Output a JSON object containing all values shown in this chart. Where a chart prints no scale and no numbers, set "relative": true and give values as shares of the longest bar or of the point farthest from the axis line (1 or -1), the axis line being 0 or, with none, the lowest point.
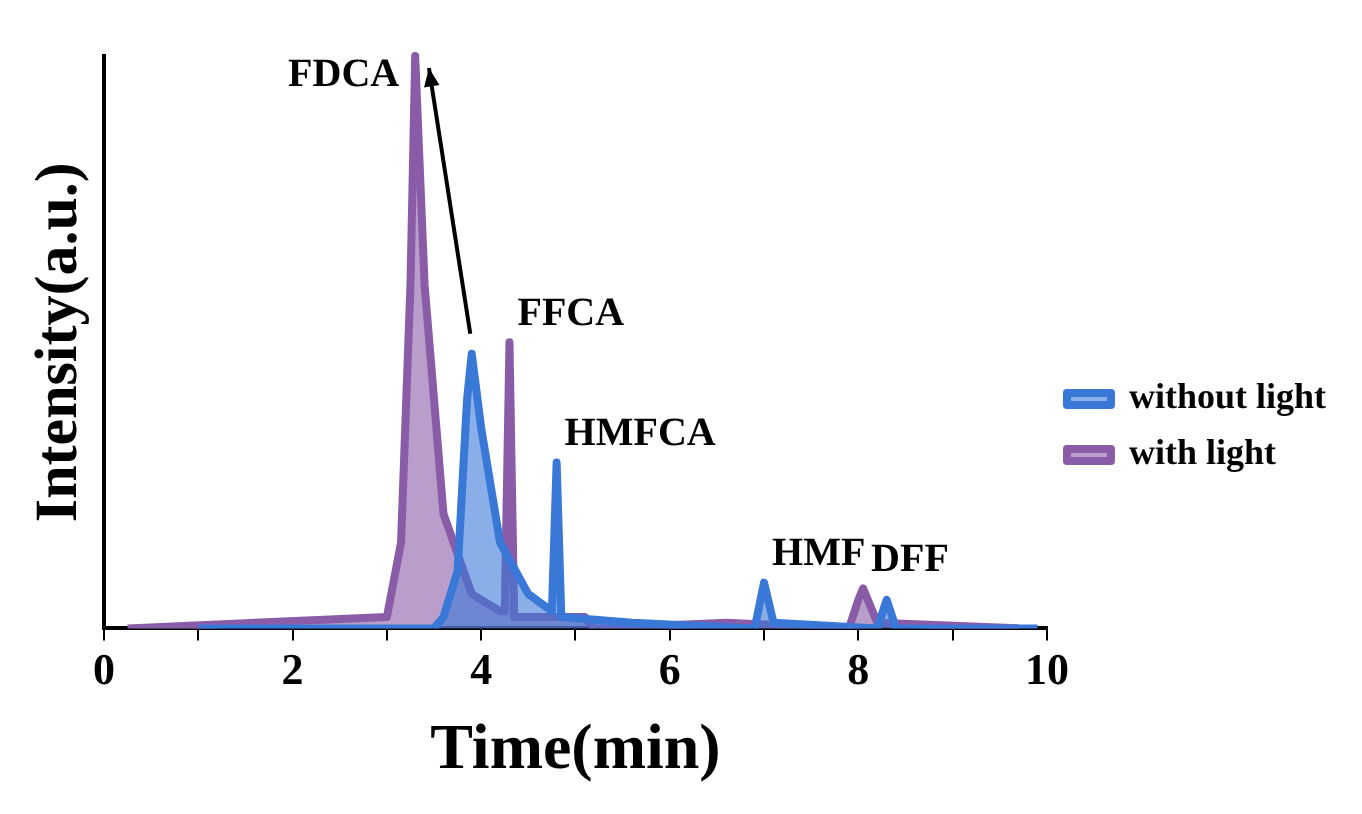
{
  "chart_data": {
    "type": "area",
    "relative": true,
    "xlabel": "Time(min)",
    "ylabel": "Intensity(a.u.)",
    "xlim": [
      0,
      10
    ],
    "xticks": [
      0,
      {
        "value": 1,
        "label": null
      },
      2,
      {
        "value": 3,
        "label": null
      },
      4,
      {
        "value": 5,
        "label": null
      },
      6,
      {
        "value": 7,
        "label": null
      },
      8,
      {
        "value": 9,
        "label": null
      },
      10
    ],
    "grid": false,
    "legend": "right",
    "marker": "none",
    "line_style": "solid",
    "series": [
      {
        "name": "without light",
        "color": "#3a78d8",
        "x": [
          1.0,
          3.5,
          3.6,
          3.75,
          3.85,
          3.9,
          4.0,
          4.2,
          4.5,
          4.75,
          4.8,
          4.85,
          5.6,
          6.9,
          7.0,
          7.1,
          8.2,
          8.3,
          8.4,
          9.9
        ],
        "values": [
          0,
          0,
          0.02,
          0.1,
          0.4,
          0.48,
          0.35,
          0.15,
          0.06,
          0.03,
          0.29,
          0.02,
          0.01,
          0,
          0.08,
          0.01,
          0,
          0.05,
          0,
          0
        ]
      },
      {
        "name": "with light",
        "color": "#8a5ca8",
        "x": [
          0.25,
          3.0,
          3.15,
          3.25,
          3.3,
          3.4,
          3.6,
          3.9,
          4.2,
          4.25,
          4.3,
          4.35,
          5.1,
          5.2,
          6.6,
          7.9,
          8.0,
          8.05,
          8.2,
          9.7
        ],
        "values": [
          0,
          0.02,
          0.15,
          0.6,
          1,
          0.6,
          0.2,
          0.06,
          0.03,
          0.03,
          0.5,
          0.02,
          0.02,
          0,
          0.01,
          0,
          0.05,
          0.07,
          0.01,
          0
        ]
      }
    ],
    "annotations": [
      {
        "text": "FDCA",
        "x": 3.3,
        "y": 1
      },
      {
        "text": "FFCA",
        "x": 4.3,
        "y": 0.5
      },
      {
        "text": "DFF",
        "x": 8.05,
        "y": 0.07
      },
      {
        "text": "HMFCA",
        "x": 4.8,
        "y": 0.29
      },
      {
        "text": "HMF",
        "x": 7.0,
        "y": 0.08
      }
    ]
  }
}
